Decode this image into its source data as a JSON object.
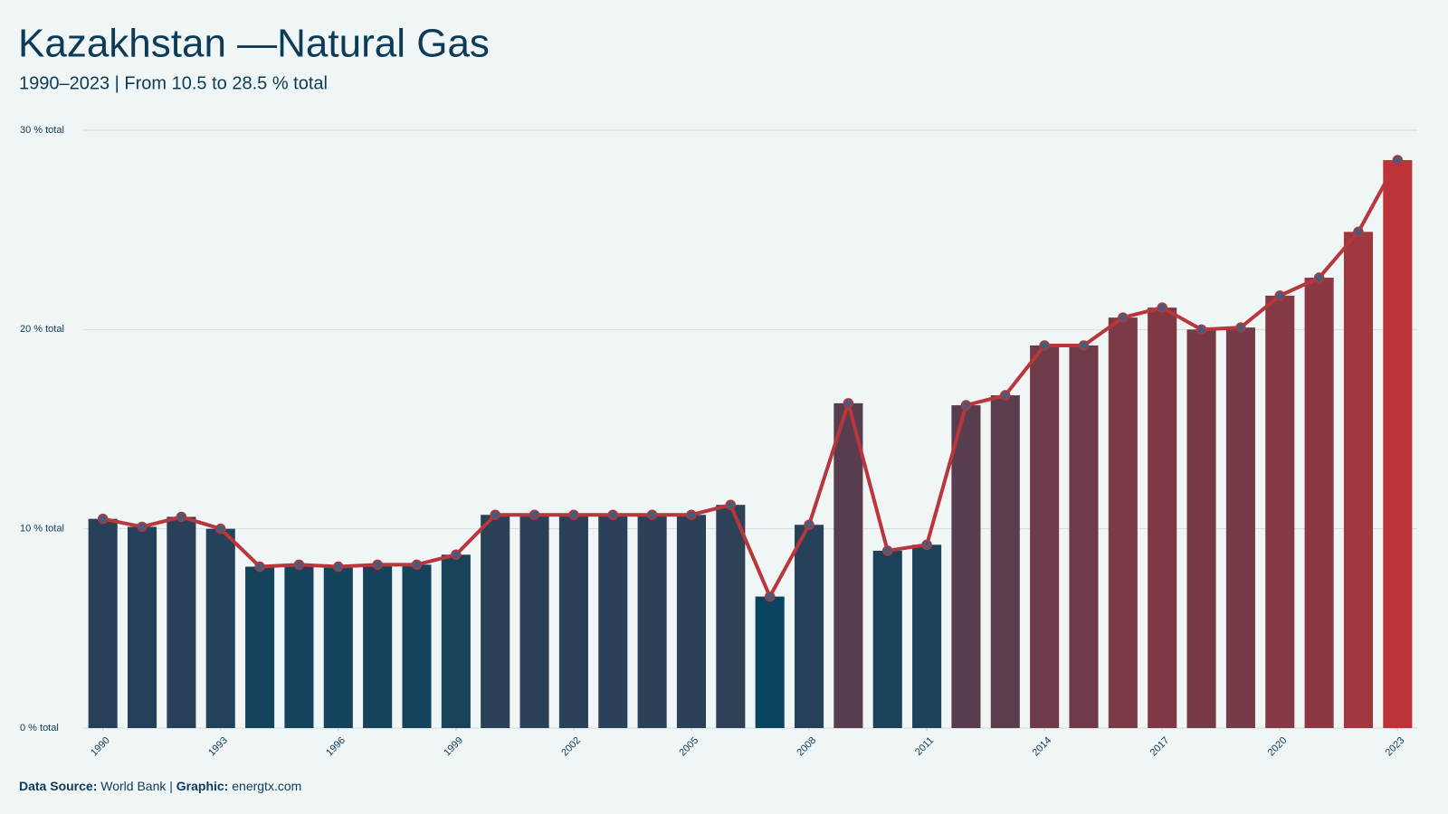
{
  "chart_data": {
    "type": "bar-line",
    "title": "Kazakhstan —Natural Gas",
    "subtitle": "1990–2023 | From 10.5 to 28.5 % total",
    "x": [
      1990,
      1991,
      1992,
      1993,
      1994,
      1995,
      1996,
      1997,
      1998,
      1999,
      2000,
      2001,
      2002,
      2003,
      2004,
      2005,
      2006,
      2007,
      2008,
      2009,
      2010,
      2011,
      2012,
      2013,
      2014,
      2015,
      2016,
      2017,
      2018,
      2019,
      2020,
      2021,
      2022,
      2023
    ],
    "values": [
      10.5,
      10.1,
      10.6,
      10.0,
      8.1,
      8.2,
      8.1,
      8.2,
      8.2,
      8.7,
      10.7,
      10.7,
      10.7,
      10.7,
      10.7,
      10.7,
      11.2,
      6.6,
      10.2,
      16.3,
      8.9,
      9.2,
      16.2,
      16.7,
      19.2,
      19.2,
      20.6,
      21.1,
      20.0,
      20.1,
      21.7,
      22.6,
      24.9,
      28.5
    ],
    "xlim": [
      1989.5,
      2023.5
    ],
    "xticks": [
      1990,
      1993,
      1996,
      1999,
      2002,
      2005,
      2008,
      2011,
      2014,
      2017,
      2020,
      2023
    ],
    "ylim": [
      0,
      30
    ],
    "yticks": [
      {
        "value": 0,
        "label": "0 % total"
      },
      {
        "value": 10,
        "label": "10 % total"
      },
      {
        "value": 20,
        "label": "20 % total"
      },
      {
        "value": 30,
        "label": "30 % total"
      }
    ],
    "grid": true,
    "bar_color_low": "#08445f",
    "bar_color_high": "#bc3438",
    "line_color": "#b8363c",
    "marker_color": "#4a5a78",
    "footer": {
      "source_label": "Data Source:",
      "source": "World Bank",
      "separator": "|",
      "graphic_label": "Graphic:",
      "graphic": "energtx.com"
    }
  }
}
